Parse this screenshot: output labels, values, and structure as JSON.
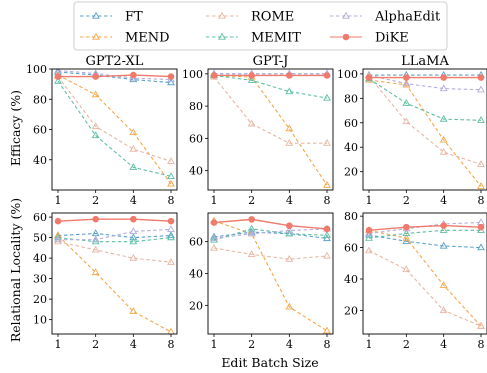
{
  "chart_data": {
    "type": "line",
    "x": [
      1,
      2,
      4,
      8
    ],
    "xlabel": "Edit Batch Size",
    "ylabels": [
      "Efficacy (%)",
      "Relational Locality (%)"
    ],
    "columns": [
      "GPT2-XL",
      "GPT-J",
      "LLaMA"
    ],
    "legend_position": "top-center",
    "series": [
      {
        "key": "FT",
        "name": "FT",
        "color": "#5a9fc7",
        "marker": "triangle",
        "dash": "dashed"
      },
      {
        "key": "MEND",
        "name": "MEND",
        "color": "#f5a64a",
        "marker": "triangle",
        "dash": "dashed"
      },
      {
        "key": "ROME",
        "name": "ROME",
        "color": "#e8b6a4",
        "marker": "triangle",
        "dash": "dashed"
      },
      {
        "key": "MEMIT",
        "name": "MEMIT",
        "color": "#5fbfa4",
        "marker": "triangle",
        "dash": "dashed"
      },
      {
        "key": "AlphaEdit",
        "name": "AlphaEdit",
        "color": "#b3aedb",
        "marker": "triangle",
        "dash": "dashed"
      },
      {
        "key": "DiKE",
        "name": "DiKE",
        "color": "#f07a6b",
        "marker": "circle",
        "dash": "solid"
      }
    ],
    "panels": [
      {
        "row": 0,
        "col": 0,
        "title": "GPT2-XL",
        "ylim": [
          20,
          100
        ],
        "yticks": [
          40,
          60,
          80,
          100
        ],
        "values": {
          "FT": [
            98,
            96,
            93,
            91
          ],
          "MEND": [
            96,
            83,
            58,
            24
          ],
          "ROME": [
            95,
            62,
            47,
            39
          ],
          "MEMIT": [
            92,
            56,
            35,
            29
          ],
          "AlphaEdit": [
            99,
            97,
            94,
            93
          ],
          "DiKE": [
            95,
            95,
            96,
            95
          ]
        }
      },
      {
        "row": 0,
        "col": 1,
        "title": "GPT-J",
        "ylim": [
          28,
          103
        ],
        "yticks": [
          40,
          60,
          80,
          100
        ],
        "values": {
          "FT": [
            100,
            100,
            100,
            100
          ],
          "MEND": [
            99,
            98,
            66,
            31
          ],
          "ROME": [
            98,
            69,
            57,
            57
          ],
          "MEMIT": [
            99,
            96,
            89,
            85
          ],
          "AlphaEdit": [
            100,
            100,
            100,
            100
          ],
          "DiKE": [
            99,
            99,
            99,
            99
          ]
        }
      },
      {
        "row": 0,
        "col": 2,
        "title": "LLaMA",
        "ylim": [
          5,
          104
        ],
        "yticks": [
          20,
          40,
          60,
          80,
          100
        ],
        "values": {
          "FT": [
            99,
            99,
            99,
            99
          ],
          "MEND": [
            95,
            91,
            46,
            8
          ],
          "ROME": [
            98,
            61,
            36,
            26
          ],
          "MEMIT": [
            96,
            76,
            63,
            62
          ],
          "AlphaEdit": [
            99,
            92,
            88,
            87
          ],
          "DiKE": [
            97,
            97,
            97,
            97
          ]
        }
      },
      {
        "row": 1,
        "col": 0,
        "title": "",
        "ylim": [
          3,
          62
        ],
        "yticks": [
          10,
          20,
          30,
          40,
          50,
          60
        ],
        "values": {
          "FT": [
            51,
            52,
            50,
            51
          ],
          "MEND": [
            51,
            33,
            14,
            4
          ],
          "ROME": [
            48,
            44,
            40,
            38
          ],
          "MEMIT": [
            50,
            48,
            48,
            50
          ],
          "AlphaEdit": [
            49,
            49,
            53,
            54
          ],
          "DiKE": [
            58,
            59,
            59,
            58
          ]
        }
      },
      {
        "row": 1,
        "col": 1,
        "title": "",
        "ylim": [
          2,
          78
        ],
        "yticks": [
          20,
          40,
          60
        ],
        "values": {
          "FT": [
            63,
            66,
            65,
            62
          ],
          "MEND": [
            73,
            65,
            19,
            4
          ],
          "ROME": [
            56,
            52,
            49,
            51
          ],
          "MEMIT": [
            61,
            68,
            65,
            64
          ],
          "AlphaEdit": [
            62,
            65,
            67,
            68
          ],
          "DiKE": [
            72,
            74,
            70,
            68
          ]
        }
      },
      {
        "row": 1,
        "col": 2,
        "title": "",
        "ylim": [
          5,
          82
        ],
        "yticks": [
          20,
          40,
          60,
          80
        ],
        "values": {
          "FT": [
            68,
            64,
            61,
            60
          ],
          "MEND": [
            71,
            66,
            36,
            10
          ],
          "ROME": [
            58,
            46,
            20,
            10
          ],
          "MEMIT": [
            66,
            69,
            71,
            71
          ],
          "AlphaEdit": [
            69,
            72,
            75,
            76
          ],
          "DiKE": [
            71,
            73,
            74,
            73
          ]
        }
      }
    ]
  }
}
